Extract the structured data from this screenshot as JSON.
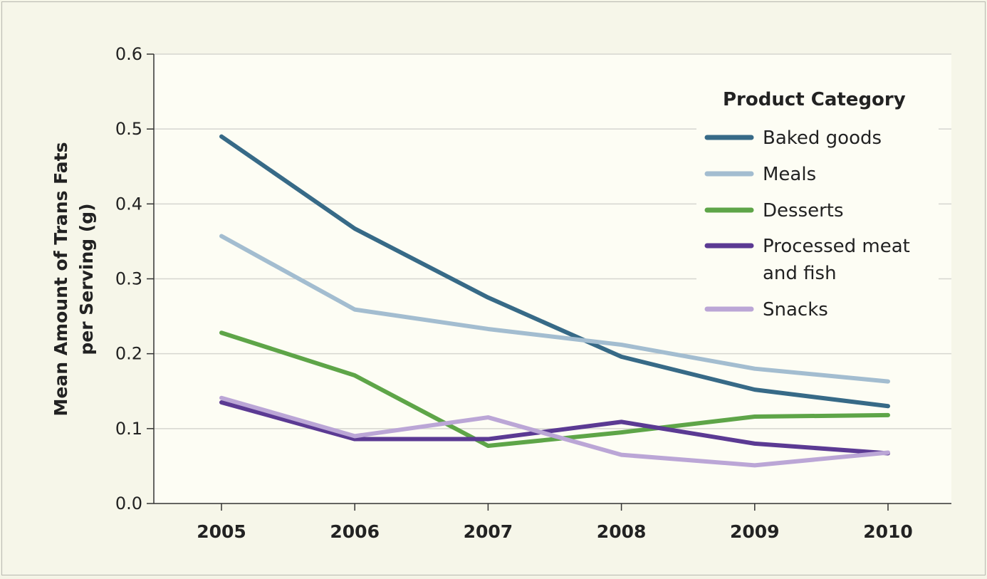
{
  "chart_data": {
    "type": "line",
    "title": "",
    "xlabel": "",
    "ylabel": "Mean Amount of Trans Fats per Serving (g)",
    "ylabel_lines": [
      "Mean Amount of Trans Fats",
      "per Serving (g)"
    ],
    "x": [
      "2005",
      "2006",
      "2007",
      "2008",
      "2009",
      "2010"
    ],
    "ylim": [
      0,
      0.6
    ],
    "yticks": [
      "0.0",
      "0.1",
      "0.2",
      "0.3",
      "0.4",
      "0.5",
      "0.6"
    ],
    "grid": true,
    "legend": {
      "title": "Product Category",
      "placement": "top-right"
    },
    "series": [
      {
        "name": "Baked goods",
        "name_lines": [
          "Baked goods"
        ],
        "color": "#376a87",
        "values": [
          0.49,
          0.367,
          0.275,
          0.196,
          0.152,
          0.13
        ]
      },
      {
        "name": "Meals",
        "name_lines": [
          "Meals"
        ],
        "color": "#a3bdd0",
        "values": [
          0.357,
          0.259,
          0.233,
          0.212,
          0.18,
          0.163
        ]
      },
      {
        "name": "Desserts",
        "name_lines": [
          "Desserts"
        ],
        "color": "#5ea548",
        "values": [
          0.228,
          0.171,
          0.077,
          0.095,
          0.116,
          0.118
        ]
      },
      {
        "name": "Processed meat and fish",
        "name_lines": [
          "Processed meat",
          "and fish"
        ],
        "color": "#5b3a93",
        "values": [
          0.135,
          0.086,
          0.086,
          0.109,
          0.08,
          0.067
        ]
      },
      {
        "name": "Snacks",
        "name_lines": [
          "Snacks"
        ],
        "color": "#bba6d6",
        "values": [
          0.141,
          0.09,
          0.115,
          0.065,
          0.051,
          0.068
        ]
      }
    ]
  }
}
